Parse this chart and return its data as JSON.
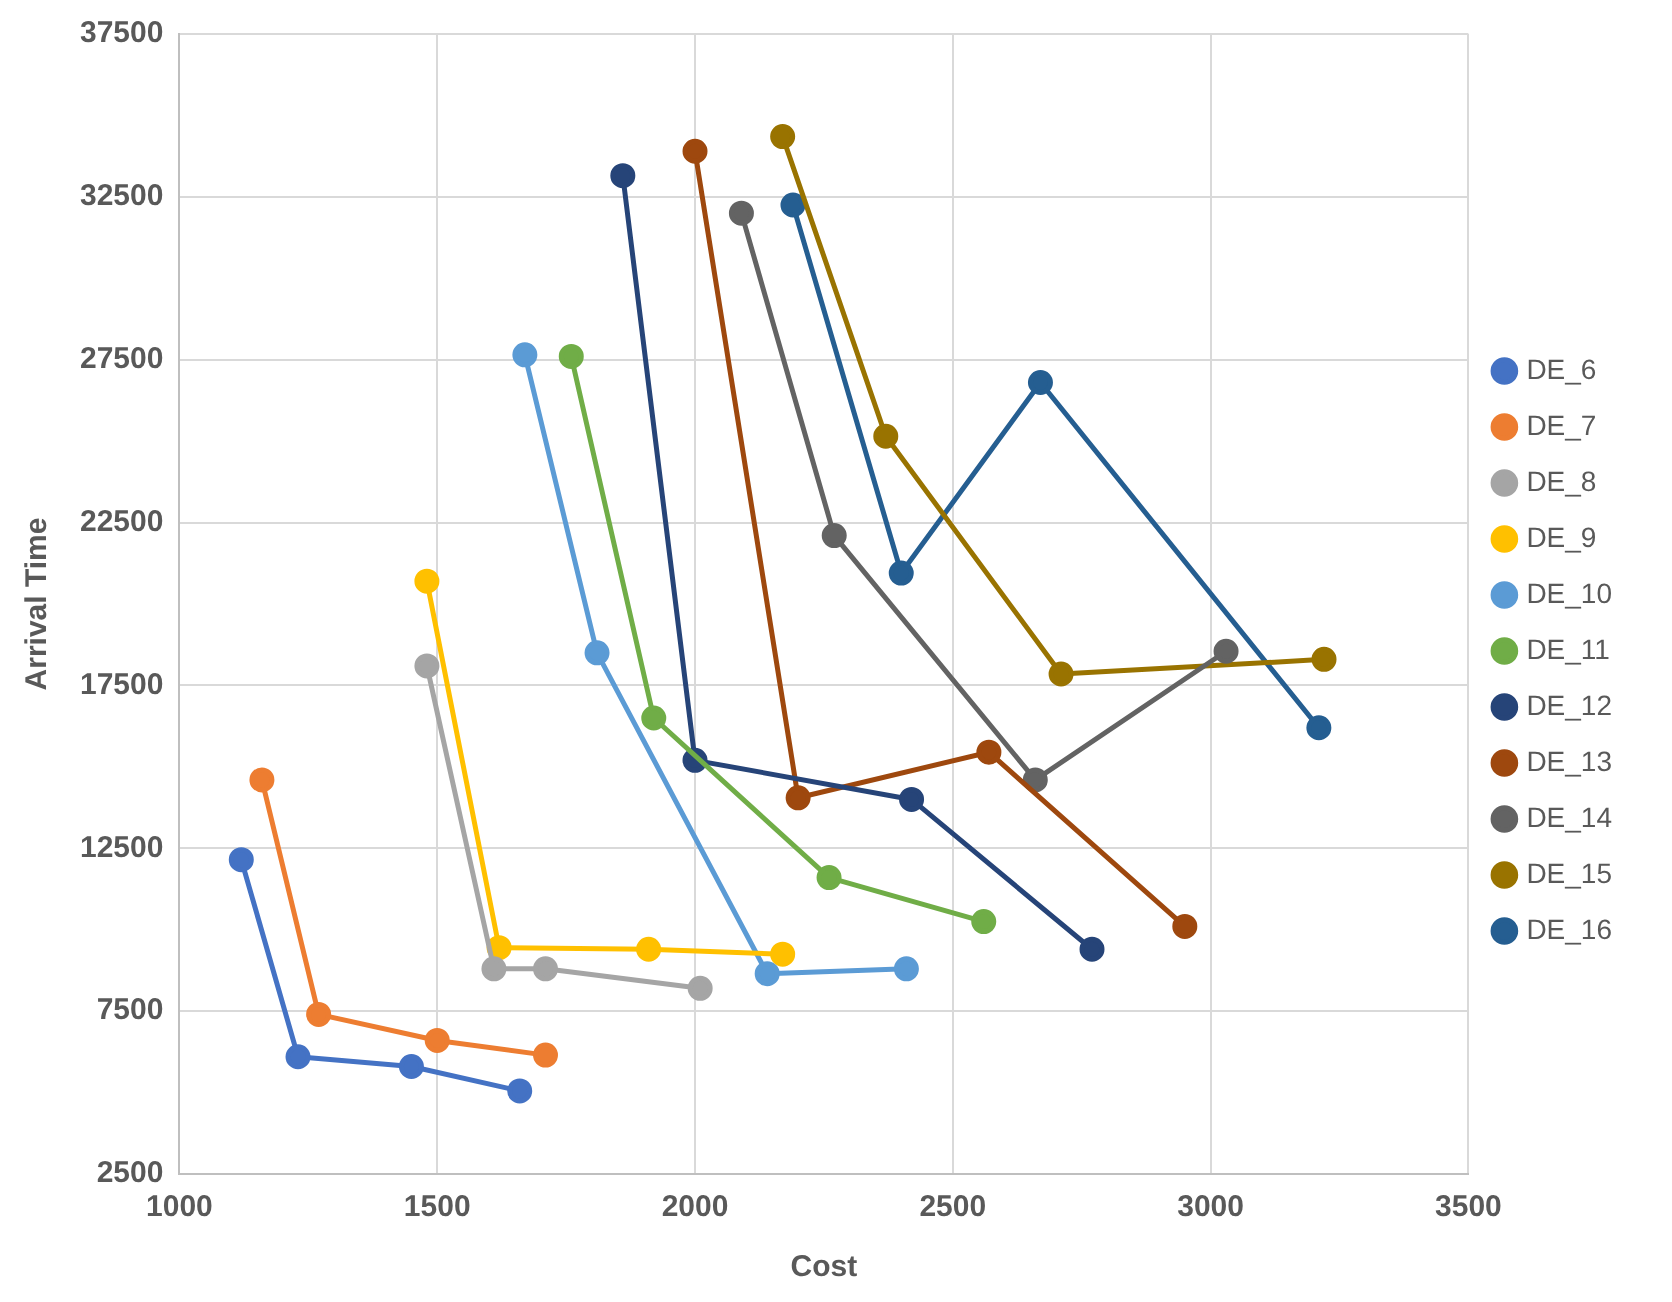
{
  "chart_data": {
    "type": "line",
    "xlabel": "Cost",
    "ylabel": "Arrival Time",
    "xlim": [
      1000,
      3500
    ],
    "xticks": [
      1000,
      1500,
      2000,
      2500,
      3000,
      3500
    ],
    "ylim": [
      2500,
      37500
    ],
    "yticks": [
      2500,
      7500,
      12500,
      17500,
      22500,
      27500,
      32500,
      37500
    ],
    "grid": true,
    "legend": "right",
    "marker": "circle",
    "line_style": "solid",
    "series": [
      {
        "name": "DE_6",
        "color": "#4472c4",
        "x": [
          1120,
          1230,
          1450,
          1660
        ],
        "values": [
          12150,
          6100,
          5800,
          5050
        ]
      },
      {
        "name": "DE_7",
        "color": "#ed7d31",
        "x": [
          1160,
          1270,
          1500,
          1710
        ],
        "values": [
          14600,
          7400,
          6600,
          6150
        ]
      },
      {
        "name": "DE_8",
        "color": "#a5a5a5",
        "x": [
          1480,
          1610,
          1710,
          2010
        ],
        "values": [
          18100,
          8800,
          8800,
          8200
        ]
      },
      {
        "name": "DE_9",
        "color": "#ffc000",
        "x": [
          1480,
          1620,
          1910,
          2170
        ],
        "values": [
          20700,
          9450,
          9400,
          9250
        ]
      },
      {
        "name": "DE_10",
        "color": "#5b9bd5",
        "x": [
          1670,
          1810,
          2140,
          2410
        ],
        "values": [
          27650,
          18500,
          8650,
          8800
        ]
      },
      {
        "name": "DE_11",
        "color": "#70ad47",
        "x": [
          1760,
          1920,
          2260,
          2560
        ],
        "values": [
          27600,
          16500,
          11600,
          10250
        ]
      },
      {
        "name": "DE_12",
        "color": "#264478",
        "x": [
          1860,
          2000,
          2420,
          2770
        ],
        "values": [
          33150,
          15200,
          14000,
          9400
        ]
      },
      {
        "name": "DE_13",
        "color": "#9e480e",
        "x": [
          2000,
          2200,
          2570,
          2950
        ],
        "values": [
          33900,
          14050,
          15450,
          10100
        ]
      },
      {
        "name": "DE_14",
        "color": "#636363",
        "x": [
          2090,
          2270,
          2660,
          3030
        ],
        "values": [
          32000,
          22100,
          14600,
          18550
        ]
      },
      {
        "name": "DE_15",
        "color": "#997300",
        "x": [
          2170,
          2370,
          2710,
          3220
        ],
        "values": [
          34350,
          25150,
          17850,
          18300
        ]
      },
      {
        "name": "DE_16",
        "color": "#255e91",
        "x": [
          2190,
          2400,
          2670,
          3210
        ],
        "values": [
          32250,
          20950,
          26800,
          16200
        ]
      }
    ]
  }
}
